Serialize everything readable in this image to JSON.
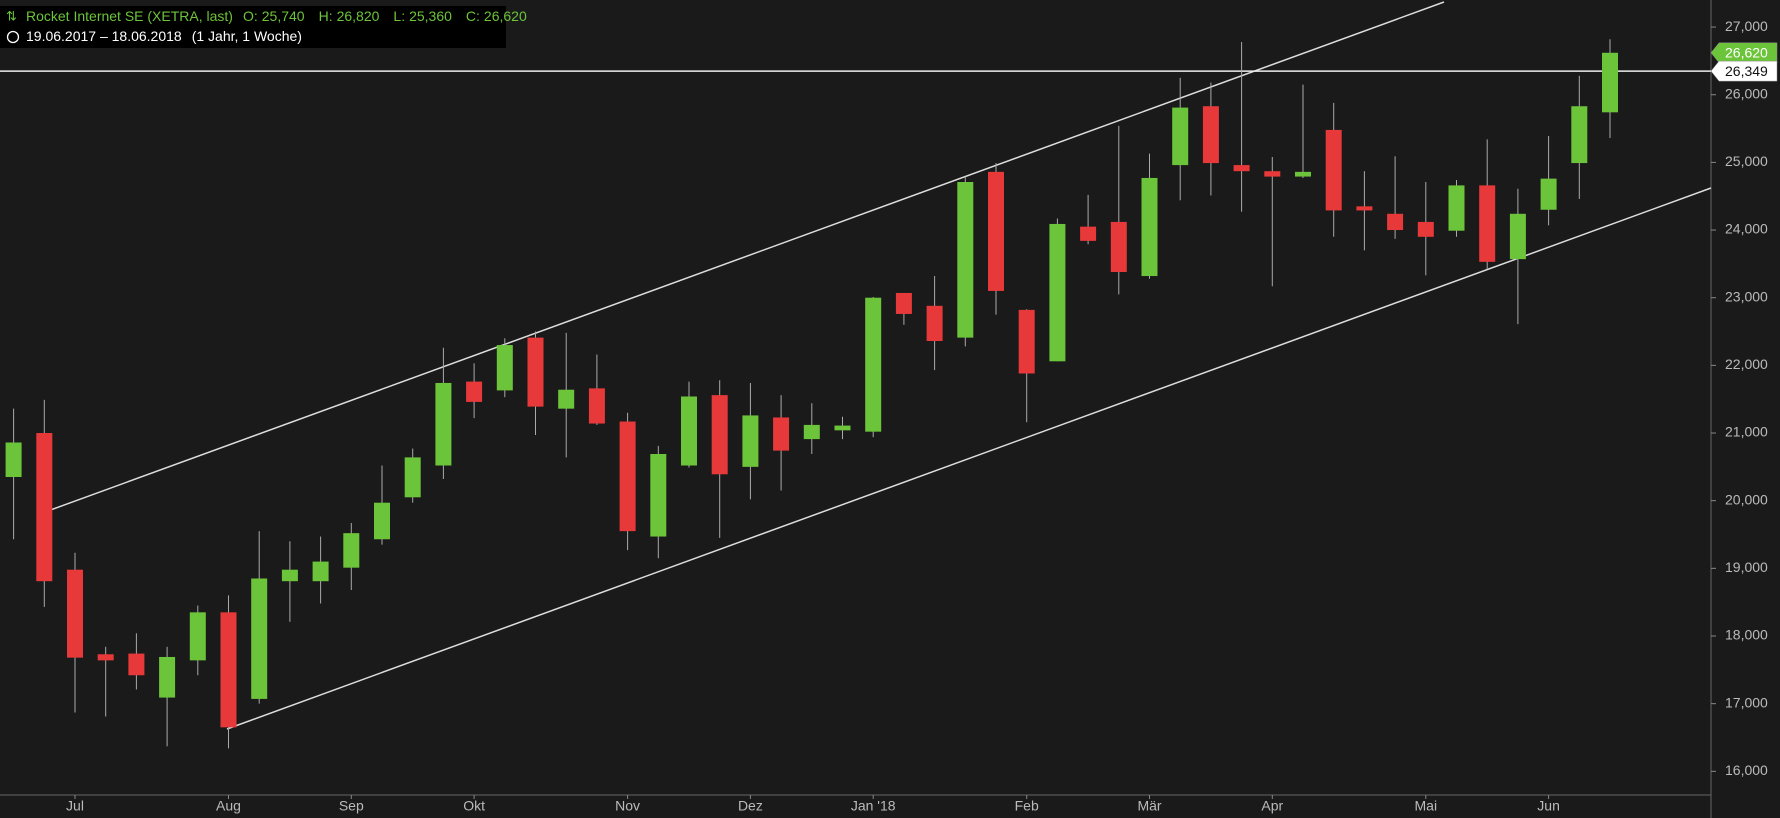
{
  "chart_data": {
    "type": "candlestick",
    "title": "Rocket Internet SE (XETRA, last)",
    "info": [
      {
        "key": "O:",
        "label": "25,740"
      },
      {
        "key": "H:",
        "label": "26,820"
      },
      {
        "key": "L:",
        "label": "25,360"
      },
      {
        "key": "C:",
        "label": "26,620"
      }
    ],
    "period": "19.06.2017 – 18.06.2018",
    "period_note": "(1 Jahr, 1 Woche)",
    "categories": [
      null,
      null,
      "Jul",
      null,
      null,
      null,
      null,
      "Aug",
      null,
      null,
      null,
      "Sep",
      null,
      null,
      null,
      "Okt",
      null,
      null,
      null,
      null,
      "Nov",
      null,
      null,
      null,
      "Dez",
      null,
      null,
      null,
      "Jan '18",
      null,
      null,
      null,
      null,
      "Feb",
      null,
      null,
      null,
      "Mär",
      null,
      null,
      null,
      "Apr",
      null,
      null,
      null,
      null,
      "Mai",
      null,
      null,
      null,
      "Jun",
      null,
      null
    ],
    "series": [
      {
        "open": [
          20350,
          21000,
          18980,
          17730,
          17740,
          17090,
          17640,
          18350,
          17070,
          18810,
          18810,
          19010,
          19430,
          20050,
          20520,
          21760,
          21630,
          22410,
          21360,
          21660,
          21170,
          19470,
          20520,
          21560,
          20500,
          21230,
          20910,
          21040,
          21020,
          23070,
          22880,
          22410,
          24860,
          22820,
          22060,
          24050,
          24120,
          23320,
          24960,
          25830,
          24960,
          24870,
          24790,
          25480,
          24350,
          24240,
          24120,
          23990,
          24660,
          23570,
          24300,
          24990,
          25740
        ],
        "high": [
          21360,
          21490,
          19230,
          17840,
          18040,
          17840,
          18450,
          18600,
          19550,
          19400,
          19470,
          19670,
          20520,
          20770,
          22260,
          22030,
          22400,
          22500,
          22480,
          22160,
          21300,
          20810,
          21760,
          21780,
          21740,
          21560,
          21440,
          21240,
          23010,
          23070,
          23320,
          24790,
          24990,
          22830,
          24170,
          24520,
          25540,
          25130,
          26250,
          26180,
          26780,
          25080,
          26150,
          25880,
          24870,
          25090,
          24710,
          24740,
          25340,
          24610,
          25390,
          26280,
          26820
        ],
        "low": [
          19430,
          18430,
          16870,
          16810,
          17210,
          16370,
          17420,
          16340,
          17000,
          18210,
          18480,
          18680,
          19350,
          19970,
          20320,
          21220,
          21530,
          20970,
          20640,
          21120,
          19270,
          19150,
          20490,
          19450,
          20020,
          20150,
          20690,
          20910,
          20940,
          22600,
          21930,
          22280,
          22750,
          21160,
          22060,
          23790,
          23050,
          23280,
          24440,
          24510,
          24270,
          23170,
          24770,
          23900,
          23700,
          23870,
          23330,
          23900,
          23420,
          22610,
          24070,
          24460,
          25360
        ],
        "close": [
          20860,
          18810,
          17680,
          17640,
          17420,
          17690,
          18350,
          16650,
          18850,
          18980,
          19100,
          19520,
          19970,
          20640,
          21740,
          21460,
          22300,
          21390,
          21640,
          21140,
          19550,
          20690,
          21540,
          20390,
          21260,
          20740,
          21120,
          21110,
          23000,
          22760,
          22360,
          24710,
          23100,
          21880,
          24090,
          23840,
          23380,
          24770,
          25810,
          24990,
          24870,
          24790,
          24860,
          24290,
          24290,
          24000,
          23900,
          24660,
          23530,
          24240,
          24760,
          25830,
          26620
        ]
      }
    ],
    "up_color": "#6cc43a",
    "down_color": "#e8393a",
    "ylim": [
      15650,
      27400
    ],
    "yticks": [
      {
        "value": 16000,
        "label": "16,000"
      },
      {
        "value": 17000,
        "label": "17,000"
      },
      {
        "value": 18000,
        "label": "18,000"
      },
      {
        "value": 19000,
        "label": "19,000"
      },
      {
        "value": 20000,
        "label": "20,000"
      },
      {
        "value": 21000,
        "label": "21,000"
      },
      {
        "value": 22000,
        "label": "22,000"
      },
      {
        "value": 23000,
        "label": "23,000"
      },
      {
        "value": 24000,
        "label": "24,000"
      },
      {
        "value": 25000,
        "label": "25,000"
      },
      {
        "value": 26000,
        "label": "26,000"
      },
      {
        "value": 27000,
        "label": "27,000"
      }
    ],
    "hline": {
      "value": 26349,
      "label": "26,349"
    },
    "last_price": {
      "value": 26620,
      "label": "26,620"
    }
  }
}
